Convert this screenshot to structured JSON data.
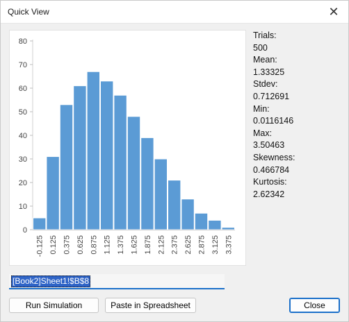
{
  "window": {
    "title": "Quick View",
    "close_glyph": "✕"
  },
  "stats": [
    {
      "label": "Trials:",
      "value": "500"
    },
    {
      "label": "Mean:",
      "value": "1.33325"
    },
    {
      "label": "Stdev:",
      "value": "0.712691"
    },
    {
      "label": "Min:",
      "value": "0.0116146"
    },
    {
      "label": "Max:",
      "value": "3.50463"
    },
    {
      "label": "Skewness:",
      "value": "0.466784"
    },
    {
      "label": "Kurtosis:",
      "value": "2.62342"
    }
  ],
  "cell_reference": "[Book2]Sheet1!$B$8",
  "buttons": {
    "run_simulation": "Run Simulation",
    "paste_in_spreadsheet": "Paste in Spreadsheet",
    "close": "Close"
  },
  "chart_data": {
    "type": "bar",
    "categories": [
      "-0.125",
      "0.125",
      "0.375",
      "0.625",
      "0.875",
      "1.125",
      "1.375",
      "1.625",
      "1.875",
      "2.125",
      "2.375",
      "2.625",
      "2.875",
      "3.125",
      "3.375"
    ],
    "values": [
      5,
      31,
      53,
      61,
      67,
      63,
      57,
      48,
      39,
      30,
      21,
      13,
      7,
      4,
      1
    ],
    "ylim": [
      0,
      80
    ],
    "yticks": [
      "0",
      "10",
      "20",
      "30",
      "40",
      "50",
      "60",
      "70",
      "80"
    ],
    "bar_color": "#5b9bd5",
    "grid": false,
    "title": "",
    "xlabel": "",
    "ylabel": ""
  }
}
